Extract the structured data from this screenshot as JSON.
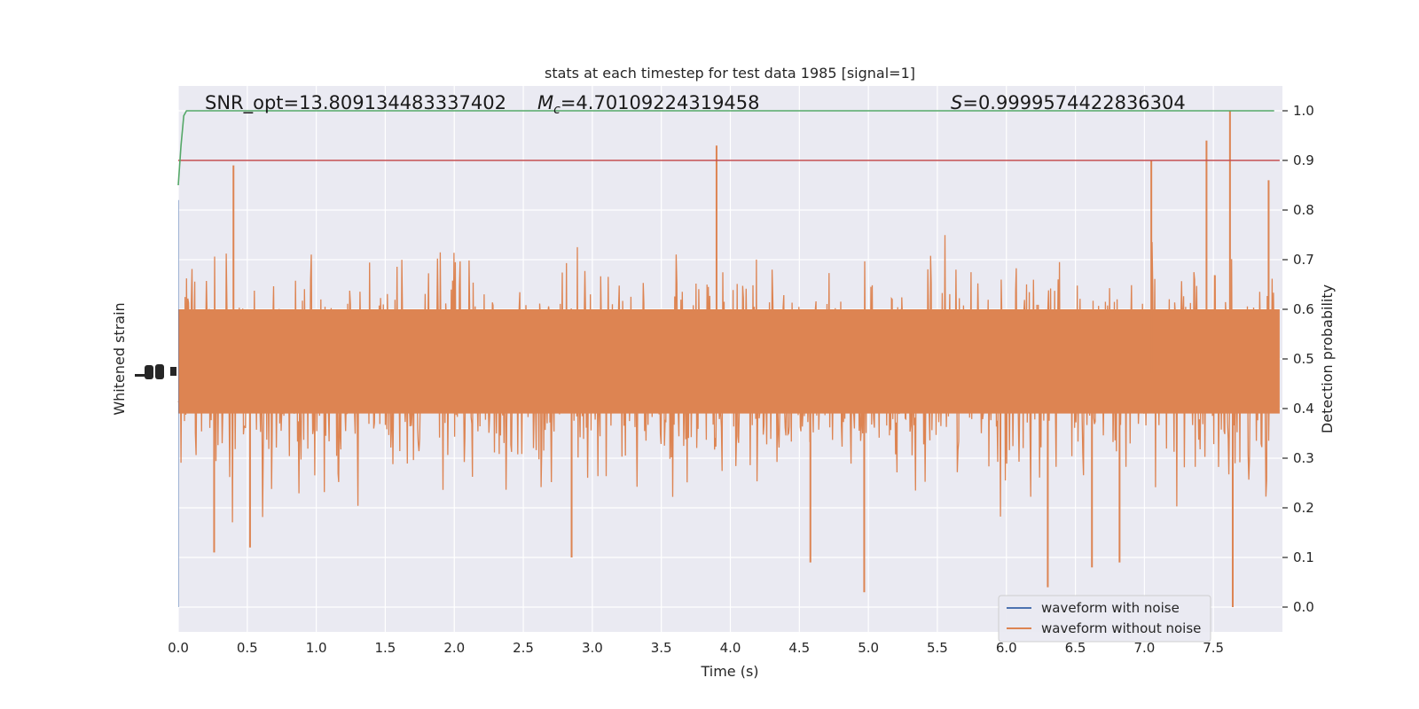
{
  "chart_data": {
    "type": "line",
    "title": "stats at each timestep for test data 1985 [signal=1]",
    "xlabel": "Time (s)",
    "ylabel_left": "Whitened strain",
    "ylabel_right": "Detection probability",
    "xlim": [
      0.0,
      8.0
    ],
    "ylim_right": [
      -0.05,
      1.05
    ],
    "x_ticks": [
      "0.0",
      "0.5",
      "1.0",
      "1.5",
      "2.0",
      "2.5",
      "3.0",
      "3.5",
      "4.0",
      "4.5",
      "5.0",
      "5.5",
      "6.0",
      "6.5",
      "7.0",
      "7.5"
    ],
    "x_tick_values": [
      0.0,
      0.5,
      1.0,
      1.5,
      2.0,
      2.5,
      3.0,
      3.5,
      4.0,
      4.5,
      5.0,
      5.5,
      6.0,
      6.5,
      7.0,
      7.5
    ],
    "y_right_ticks": [
      "0.0",
      "0.1",
      "0.2",
      "0.3",
      "0.4",
      "0.5",
      "0.6",
      "0.7",
      "0.8",
      "0.9",
      "1.0"
    ],
    "y_right_tick_values": [
      0.0,
      0.1,
      0.2,
      0.3,
      0.4,
      0.5,
      0.6,
      0.7,
      0.8,
      0.9,
      1.0
    ],
    "grid": true,
    "legend_position": "lower-right",
    "annotations": {
      "snr": "SNR_opt=13.809134483337402",
      "mc_symbol": "M",
      "mc_sub": "c",
      "mc_value": "=4.70109224319458",
      "s_symbol": "S",
      "s_value": "=0.9999574422836304"
    },
    "series": [
      {
        "name": "waveform with noise",
        "color": "#4c72b0",
        "style": "strain noise trace, hidden behind orange"
      },
      {
        "name": "waveform without noise",
        "color": "#dd8452",
        "style": "dense noisy trace",
        "center": 0.47,
        "typical_half_spread": 0.22,
        "max": 1.0,
        "min": 0.0
      }
    ],
    "detection_probability": {
      "color": "#55a868",
      "x": [
        0.0,
        0.02,
        0.04,
        0.06,
        8.0
      ],
      "y": [
        0.85,
        0.93,
        0.99,
        1.0,
        1.0
      ]
    },
    "threshold": {
      "color": "#c44e52",
      "value": 0.9
    },
    "spikes": [
      {
        "x": 0.4,
        "y": 0.89
      },
      {
        "x": 3.9,
        "y": 0.93
      },
      {
        "x": 7.05,
        "y": 0.9
      },
      {
        "x": 7.45,
        "y": 0.94
      },
      {
        "x": 7.62,
        "y": 1.0
      },
      {
        "x": 4.97,
        "y": 0.03
      },
      {
        "x": 6.3,
        "y": 0.04
      },
      {
        "x": 6.62,
        "y": 0.08
      },
      {
        "x": 7.64,
        "y": 0.0
      },
      {
        "x": 2.85,
        "y": 0.1
      },
      {
        "x": 4.58,
        "y": 0.09
      },
      {
        "x": 6.82,
        "y": 0.09
      },
      {
        "x": 0.26,
        "y": 0.11
      },
      {
        "x": 0.52,
        "y": 0.12
      },
      {
        "x": 7.9,
        "y": 0.86
      }
    ]
  }
}
